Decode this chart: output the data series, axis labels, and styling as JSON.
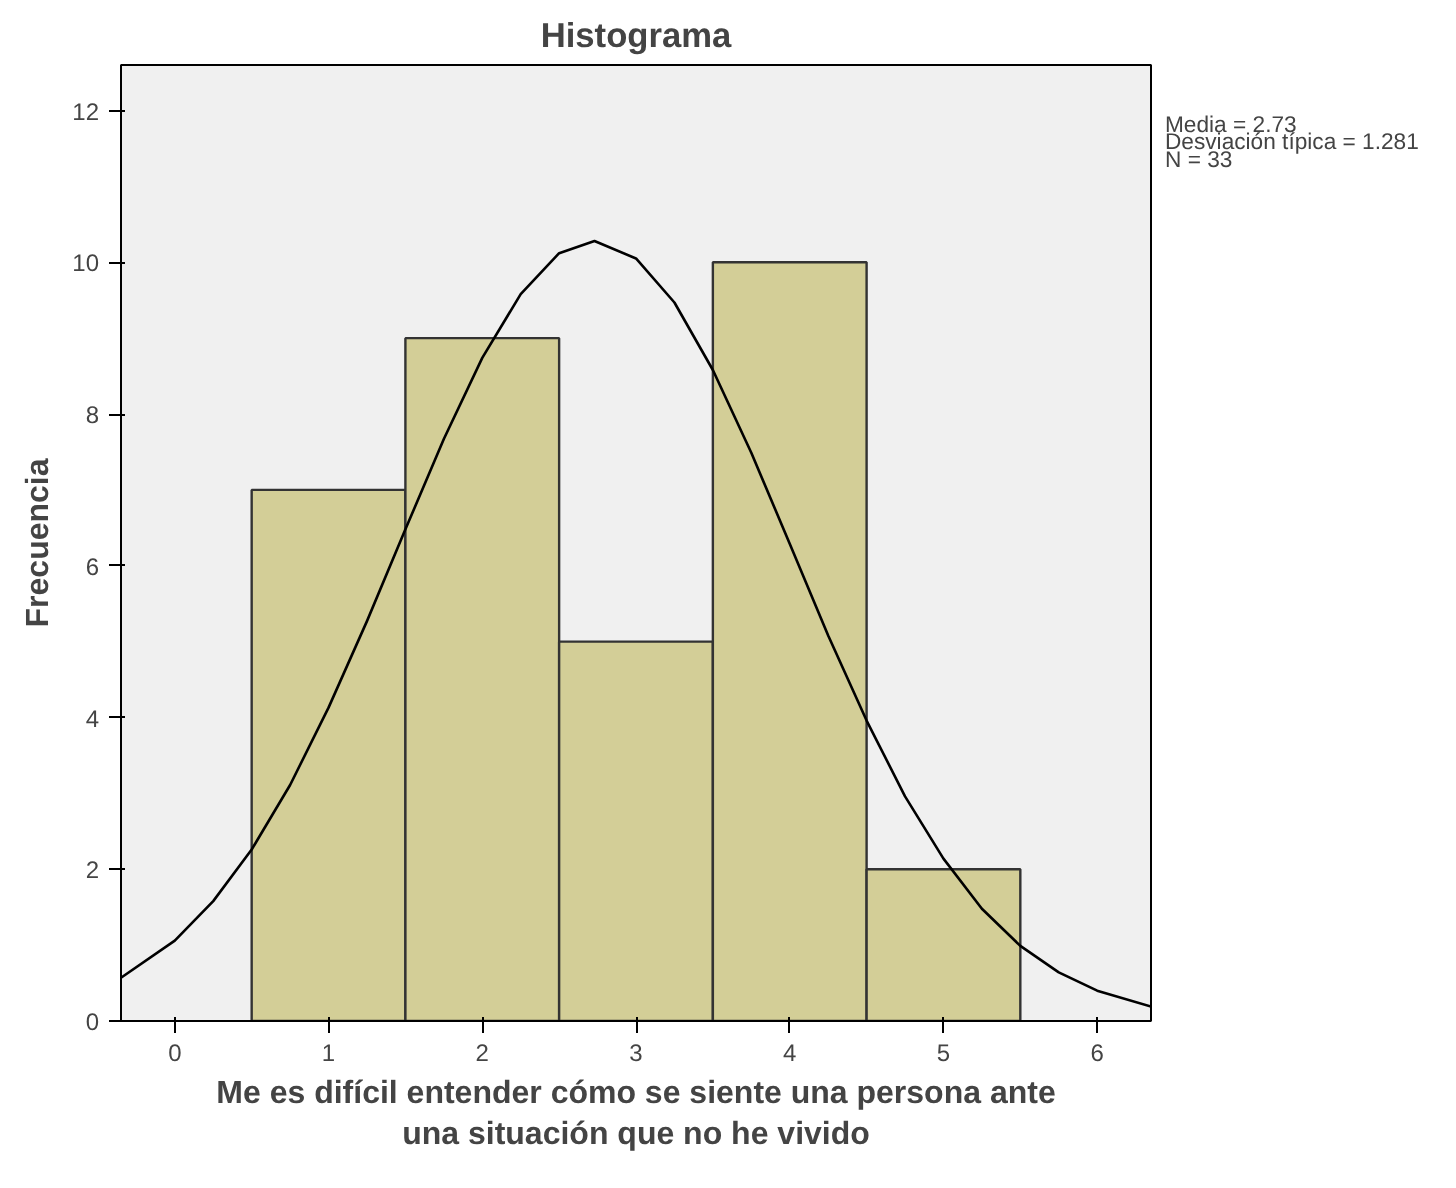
{
  "chart_data": {
    "type": "histogram",
    "title": "Histograma",
    "xlabel": "Me es difícil entender cómo se siente una persona ante\nuna situación que no he vivido",
    "ylabel": "Frecuencia",
    "bins": [
      0.5,
      1.5,
      2.5,
      3.5,
      4.5,
      5.5
    ],
    "values": [
      7,
      9,
      5,
      10,
      2
    ],
    "color": "#d3ce97",
    "series": [
      {
        "type": "line",
        "color": "#000000",
        "x": [
          -0.35,
          0,
          0.25,
          0.5,
          0.75,
          1,
          1.25,
          1.5,
          1.75,
          2,
          2.25,
          2.5,
          2.73,
          3,
          3.25,
          3.5,
          3.75,
          4,
          4.25,
          4.5,
          4.75,
          5,
          5.25,
          5.5,
          5.75,
          6,
          6.35
        ],
        "values": [
          0.57,
          1.06,
          1.58,
          2.26,
          3.11,
          4.13,
          5.27,
          6.48,
          7.67,
          8.74,
          9.58,
          10.12,
          10.28,
          10.05,
          9.47,
          8.58,
          7.49,
          6.29,
          5.08,
          3.96,
          2.96,
          2.14,
          1.48,
          0.99,
          0.64,
          0.4,
          0.19
        ]
      }
    ],
    "xlim": [
      -0.35,
      6.35
    ],
    "ylim": [
      0,
      12.6
    ],
    "xticks": [
      0,
      1,
      2,
      3,
      4,
      5,
      6
    ],
    "yticks": [
      0,
      2,
      4,
      6,
      8,
      10,
      12
    ],
    "grid": false,
    "annotations": [
      "Media = 2.73",
      "Desviación típica = 1.281",
      "N = 33"
    ]
  }
}
